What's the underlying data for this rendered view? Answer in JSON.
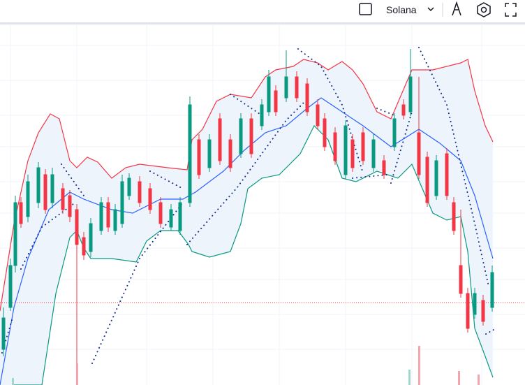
{
  "toolbar": {
    "symbol": "Solana"
  }
}
